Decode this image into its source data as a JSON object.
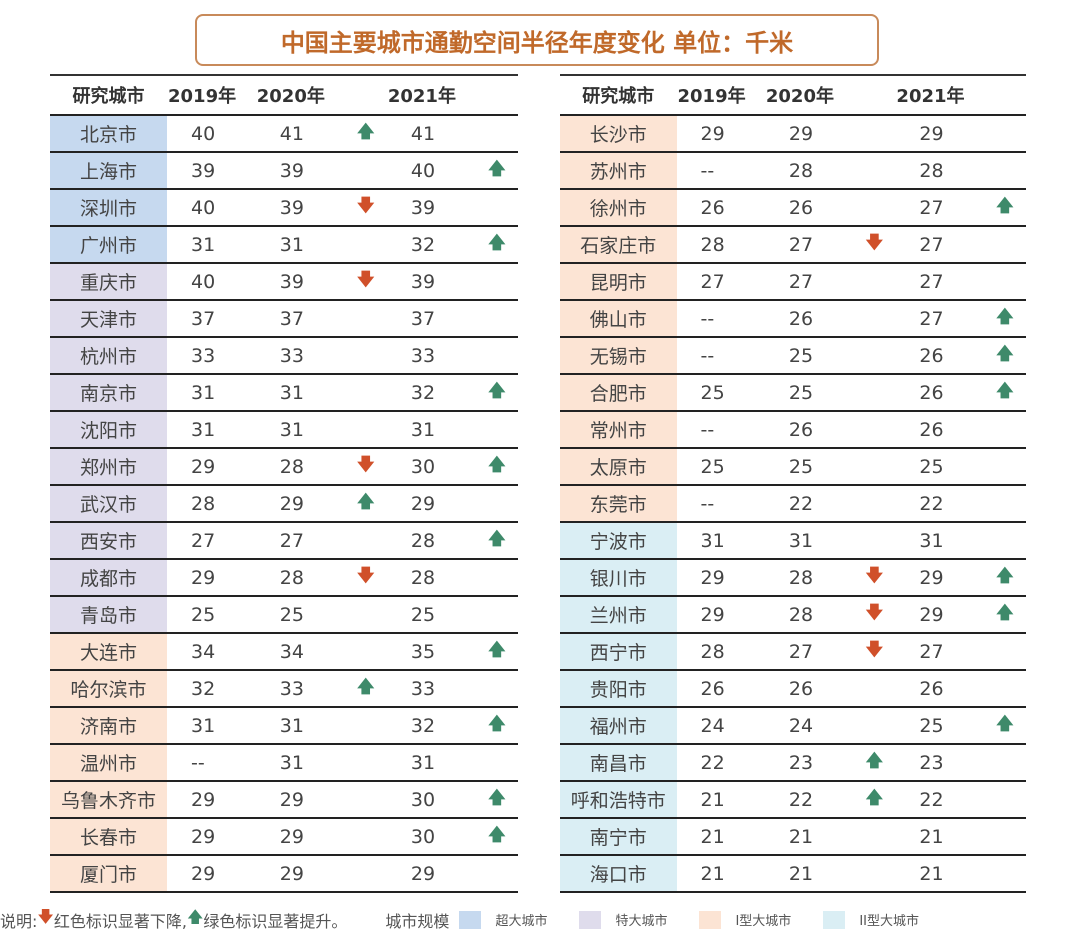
{
  "title": "中国主要城市通勤空间半径年度变化  单位：千米",
  "headers": [
    "研究城市",
    "2019年",
    "2020年",
    "2021年"
  ],
  "arrows": {
    "up": "🡅",
    "down": "🡇"
  },
  "colors": {
    "超大城市": "#c6d9ef",
    "特大城市": "#dfdcec",
    "I型大城市": "#fce4d4",
    "II型大城市": "#daeef4",
    "up": "#3e8a6a",
    "down": "#d0502a",
    "title": "#c0692a"
  },
  "left": [
    [
      "北京市",
      "t1",
      "40",
      "41",
      "up",
      "41",
      ""
    ],
    [
      "上海市",
      "t1",
      "39",
      "39",
      "",
      "40",
      "up"
    ],
    [
      "深圳市",
      "t1",
      "40",
      "39",
      "down",
      "39",
      ""
    ],
    [
      "广州市",
      "t1",
      "31",
      "31",
      "",
      "32",
      "up"
    ],
    [
      "重庆市",
      "t2",
      "40",
      "39",
      "down",
      "39",
      ""
    ],
    [
      "天津市",
      "t2",
      "37",
      "37",
      "",
      "37",
      ""
    ],
    [
      "杭州市",
      "t2",
      "33",
      "33",
      "",
      "33",
      ""
    ],
    [
      "南京市",
      "t2",
      "31",
      "31",
      "",
      "32",
      "up"
    ],
    [
      "沈阳市",
      "t2",
      "31",
      "31",
      "",
      "31",
      ""
    ],
    [
      "郑州市",
      "t2",
      "29",
      "28",
      "down",
      "30",
      "up"
    ],
    [
      "武汉市",
      "t2",
      "28",
      "29",
      "up",
      "29",
      ""
    ],
    [
      "西安市",
      "t2",
      "27",
      "27",
      "",
      "28",
      "up"
    ],
    [
      "成都市",
      "t2",
      "29",
      "28",
      "down",
      "28",
      ""
    ],
    [
      "青岛市",
      "t2",
      "25",
      "25",
      "",
      "25",
      ""
    ],
    [
      "大连市",
      "t3",
      "34",
      "34",
      "",
      "35",
      "up"
    ],
    [
      "哈尔滨市",
      "t3",
      "32",
      "33",
      "up",
      "33",
      ""
    ],
    [
      "济南市",
      "t3",
      "31",
      "31",
      "",
      "32",
      "up"
    ],
    [
      "温州市",
      "t3",
      "--",
      "31",
      "",
      "31",
      ""
    ],
    [
      "乌鲁木齐市",
      "t3",
      "29",
      "29",
      "",
      "30",
      "up"
    ],
    [
      "长春市",
      "t3",
      "29",
      "29",
      "",
      "30",
      "up"
    ],
    [
      "厦门市",
      "t3",
      "29",
      "29",
      "",
      "29",
      ""
    ]
  ],
  "right": [
    [
      "长沙市",
      "t3",
      "29",
      "29",
      "",
      "29",
      ""
    ],
    [
      "苏州市",
      "t3",
      "--",
      "28",
      "",
      "28",
      ""
    ],
    [
      "徐州市",
      "t3",
      "26",
      "26",
      "",
      "27",
      "up"
    ],
    [
      "石家庄市",
      "t3",
      "28",
      "27",
      "down",
      "27",
      ""
    ],
    [
      "昆明市",
      "t3",
      "27",
      "27",
      "",
      "27",
      ""
    ],
    [
      "佛山市",
      "t3",
      "--",
      "26",
      "",
      "27",
      "up"
    ],
    [
      "无锡市",
      "t3",
      "--",
      "25",
      "",
      "26",
      "up"
    ],
    [
      "合肥市",
      "t3",
      "25",
      "25",
      "",
      "26",
      "up"
    ],
    [
      "常州市",
      "t3",
      "--",
      "26",
      "",
      "26",
      ""
    ],
    [
      "太原市",
      "t3",
      "25",
      "25",
      "",
      "25",
      ""
    ],
    [
      "东莞市",
      "t3",
      "--",
      "22",
      "",
      "22",
      ""
    ],
    [
      "宁波市",
      "t4",
      "31",
      "31",
      "",
      "31",
      ""
    ],
    [
      "银川市",
      "t4",
      "29",
      "28",
      "down",
      "29",
      "up"
    ],
    [
      "兰州市",
      "t4",
      "29",
      "28",
      "down",
      "29",
      "up"
    ],
    [
      "西宁市",
      "t4",
      "28",
      "27",
      "down",
      "27",
      ""
    ],
    [
      "贵阳市",
      "t4",
      "26",
      "26",
      "",
      "26",
      ""
    ],
    [
      "福州市",
      "t4",
      "24",
      "24",
      "",
      "25",
      "up"
    ],
    [
      "南昌市",
      "t4",
      "22",
      "23",
      "up",
      "23",
      ""
    ],
    [
      "呼和浩特市",
      "t4",
      "21",
      "22",
      "up",
      "22",
      ""
    ],
    [
      "南宁市",
      "t4",
      "21",
      "21",
      "",
      "21",
      ""
    ],
    [
      "海口市",
      "t4",
      "21",
      "21",
      "",
      "21",
      ""
    ]
  ],
  "footer": {
    "note_prefix": "说明:",
    "down_text": "红色标识显著下降,",
    "up_text": "绿色标识显著提升。",
    "scale_label": "城市规模",
    "legend": [
      "超大城市",
      "特大城市",
      "I型大城市",
      "II型大城市"
    ]
  }
}
